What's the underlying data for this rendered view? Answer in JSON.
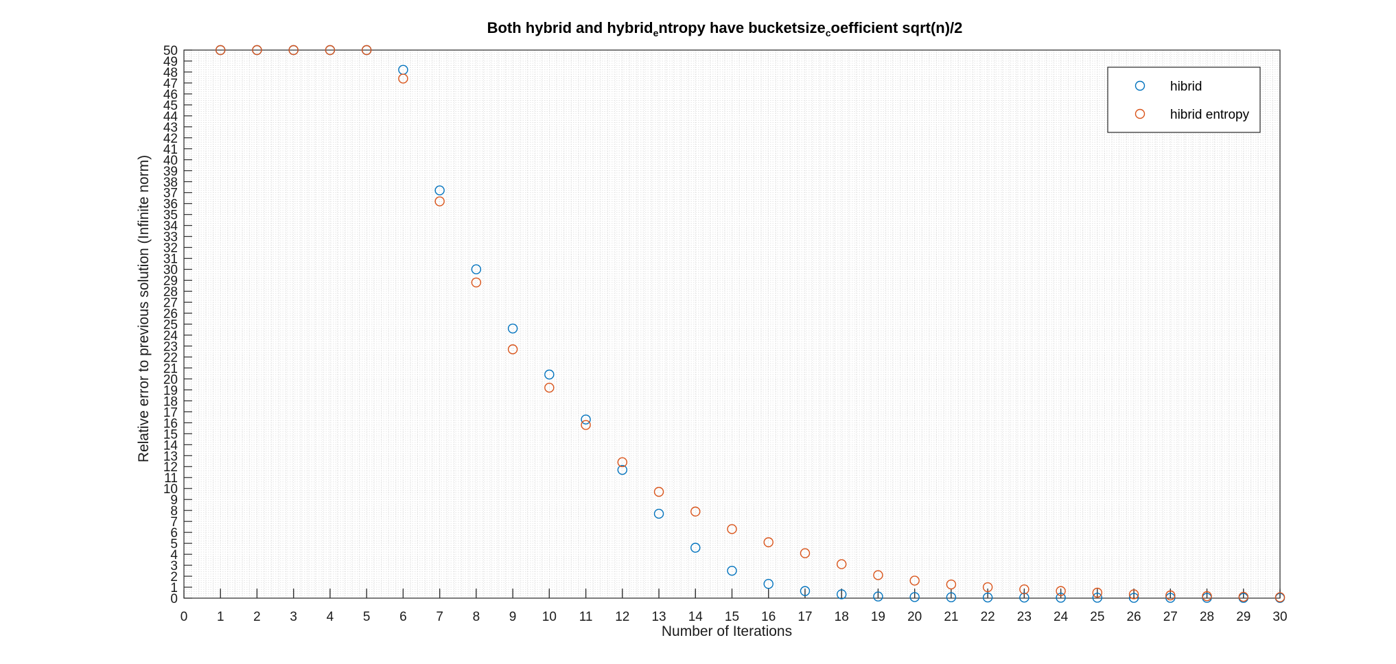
{
  "chart_data": {
    "type": "scatter",
    "title_parts": [
      "Both hybrid and hybrid",
      "e",
      "ntropy have bucketsize",
      "c",
      "oefficient sqrt(n)/2"
    ],
    "xlabel": "Number of Iterations",
    "ylabel": "Relative error to previous solution (Infinite norm)",
    "xlim": [
      0,
      30
    ],
    "ylim": [
      0,
      50
    ],
    "x_ticks": [
      0,
      1,
      2,
      3,
      4,
      5,
      6,
      7,
      8,
      9,
      10,
      11,
      12,
      13,
      14,
      15,
      16,
      17,
      18,
      19,
      20,
      21,
      22,
      23,
      24,
      25,
      26,
      27,
      28,
      29,
      30
    ],
    "y_ticks": [
      0,
      1,
      2,
      3,
      4,
      5,
      6,
      7,
      8,
      9,
      10,
      11,
      12,
      13,
      14,
      15,
      16,
      17,
      18,
      19,
      20,
      21,
      22,
      23,
      24,
      25,
      26,
      27,
      28,
      29,
      30,
      31,
      32,
      33,
      34,
      35,
      36,
      37,
      38,
      39,
      40,
      41,
      42,
      43,
      44,
      45,
      46,
      47,
      48,
      49,
      50
    ],
    "grid": true,
    "legend_position": "top-right",
    "marker": "open-circle",
    "series": [
      {
        "name": "hibrid",
        "color": "#0072BD",
        "x": [
          1,
          2,
          3,
          4,
          5,
          6,
          7,
          8,
          9,
          10,
          11,
          12,
          13,
          14,
          15,
          16,
          17,
          18,
          19,
          20,
          21,
          22,
          23,
          24,
          25,
          26,
          27,
          28,
          29,
          30
        ],
        "y": [
          50,
          50,
          50,
          50,
          50,
          48.2,
          37.2,
          30.0,
          24.6,
          20.4,
          16.3,
          11.7,
          7.7,
          4.6,
          2.5,
          1.3,
          0.65,
          0.35,
          0.15,
          0.1,
          0.08,
          0.06,
          0.05,
          0.04,
          0.04,
          0.03,
          0.03,
          0.03,
          0.02,
          0.02
        ]
      },
      {
        "name": "hibrid entropy",
        "color": "#D95319",
        "x": [
          1,
          2,
          3,
          4,
          5,
          6,
          7,
          8,
          9,
          10,
          11,
          12,
          13,
          14,
          15,
          16,
          17,
          18,
          19,
          20,
          21,
          22,
          23,
          24,
          25,
          26,
          27,
          28,
          29,
          30
        ],
        "y": [
          50,
          50,
          50,
          50,
          50,
          47.4,
          36.2,
          28.8,
          22.7,
          19.2,
          15.8,
          12.4,
          9.7,
          7.9,
          6.3,
          5.1,
          4.1,
          3.1,
          2.1,
          1.6,
          1.25,
          1.0,
          0.8,
          0.65,
          0.5,
          0.35,
          0.25,
          0.18,
          0.12,
          0.08
        ]
      }
    ]
  }
}
